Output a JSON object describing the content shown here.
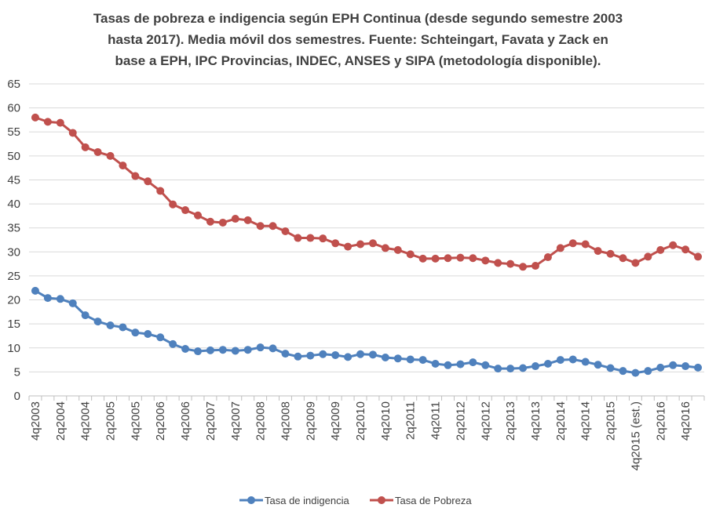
{
  "chart_data": {
    "type": "line",
    "title_lines": [
      "Tasas  de pobreza e indigencia según EPH Continua (desde segundo semestre 2003",
      "hasta 2017). Media móvil dos semestres. Fuente: Schteingart, Favata y Zack en",
      "base a EPH, IPC Provincias,  INDEC, ANSES y SIPA (metodología disponible)."
    ],
    "xlabel": "",
    "ylabel": "",
    "ylim": [
      0,
      65
    ],
    "yticks": [
      0,
      5,
      10,
      15,
      20,
      25,
      30,
      35,
      40,
      45,
      50,
      55,
      60,
      65
    ],
    "grid": true,
    "legend_position": "bottom-center",
    "categories": [
      "4q2003",
      "1q2004",
      "2q2004",
      "3q2004",
      "4q2004",
      "1q2005",
      "2q2005",
      "3q2005",
      "4q2005",
      "1q2006",
      "2q2006",
      "3q2006",
      "4q2006",
      "1q2007",
      "2q2007",
      "3q2007",
      "4q2007",
      "1q2008",
      "2q2008",
      "3q2008",
      "4q2008",
      "1q2009",
      "2q2009",
      "3q2009",
      "4q2009",
      "1q2010",
      "2q2010",
      "3q2010",
      "4q2010",
      "1q2011",
      "2q2011",
      "3q2011",
      "4q2011",
      "1q2012",
      "2q2012",
      "3q2012",
      "4q2012",
      "1q2013",
      "2q2013",
      "3q2013",
      "4q2013",
      "1q2014",
      "2q2014",
      "3q2014",
      "4q2014",
      "1q2015",
      "2q2015",
      "3q2015",
      "4q2015 (est.)",
      "1q2016",
      "2q2016",
      "3q2016",
      "4q2016",
      "1q2017"
    ],
    "x_tick_labels": [
      "4q2003",
      "2q2004",
      "4q2004",
      "2q2005",
      "4q2005",
      "2q2006",
      "4q2006",
      "2q2007",
      "4q2007",
      "2q2008",
      "4q2008",
      "2q2009",
      "4q2009",
      "2q2010",
      "4q2010",
      "2q2011",
      "4q2011",
      "2q2012",
      "4q2012",
      "2q2013",
      "4q2013",
      "2q2014",
      "4q2014",
      "2q2015",
      "4q2015 (est.)",
      "2q2016",
      "4q2016"
    ],
    "series": [
      {
        "name": "Tasa de indigencia",
        "color": "#4F81BD",
        "values": [
          21.9,
          20.4,
          20.2,
          19.3,
          16.8,
          15.5,
          14.7,
          14.3,
          13.2,
          12.9,
          12.2,
          10.8,
          9.8,
          9.3,
          9.5,
          9.6,
          9.4,
          9.6,
          10.1,
          9.9,
          8.8,
          8.2,
          8.4,
          8.7,
          8.5,
          8.1,
          8.7,
          8.6,
          8.0,
          7.8,
          7.6,
          7.5,
          6.7,
          6.4,
          6.6,
          7.0,
          6.4,
          5.7,
          5.7,
          5.8,
          6.2,
          6.7,
          7.5,
          7.6,
          7.1,
          6.5,
          5.8,
          5.2,
          4.8,
          5.2,
          5.9,
          6.4,
          6.2,
          5.9
        ]
      },
      {
        "name": "Tasa de Pobreza",
        "color": "#C0504D",
        "values": [
          58.0,
          57.1,
          56.9,
          54.8,
          51.8,
          50.8,
          50.0,
          48.0,
          45.8,
          44.7,
          42.7,
          39.9,
          38.7,
          37.6,
          36.3,
          36.1,
          36.9,
          36.6,
          35.4,
          35.4,
          34.3,
          32.9,
          32.9,
          32.8,
          31.8,
          31.1,
          31.6,
          31.8,
          30.8,
          30.4,
          29.5,
          28.6,
          28.6,
          28.7,
          28.8,
          28.7,
          28.2,
          27.7,
          27.5,
          26.9,
          27.1,
          28.9,
          30.8,
          31.8,
          31.6,
          30.2,
          29.6,
          28.7,
          27.7,
          29.0,
          30.4,
          31.4,
          30.5,
          29.0
        ]
      }
    ]
  }
}
